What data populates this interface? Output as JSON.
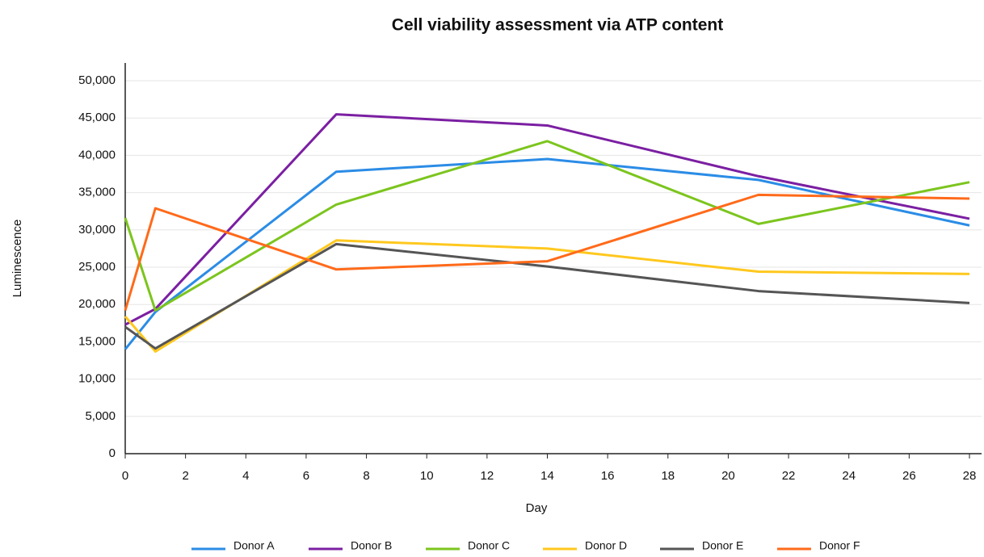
{
  "chart_data": {
    "type": "line",
    "title": "Cell viability assessment via ATP content",
    "x_label": "Day",
    "y_label": "Luminescence",
    "x": [
      0,
      1,
      7,
      14,
      21,
      28
    ],
    "series": [
      {
        "name": "Donor A",
        "color": "#2b8ce6",
        "values": [
          14000,
          19000,
          37800,
          39500,
          36700,
          30600
        ]
      },
      {
        "name": "Donor B",
        "color": "#7b1fa2",
        "values": [
          17300,
          19400,
          45500,
          44000,
          37200,
          31500
        ]
      },
      {
        "name": "Donor C",
        "color": "#7cc51e",
        "values": [
          31600,
          19200,
          33400,
          41900,
          30800,
          36400
        ]
      },
      {
        "name": "Donor D",
        "color": "#ffc81e",
        "values": [
          18400,
          13700,
          28600,
          27500,
          24400,
          24100
        ]
      },
      {
        "name": "Donor E",
        "color": "#555555",
        "values": [
          17000,
          14100,
          28100,
          25100,
          21800,
          20200
        ]
      },
      {
        "name": "Donor F",
        "color": "#ff6a1a",
        "values": [
          19200,
          32900,
          24700,
          25800,
          34700,
          34200
        ]
      }
    ],
    "xlim": [
      0,
      28
    ],
    "xticks": [
      0,
      2,
      4,
      6,
      8,
      10,
      12,
      14,
      16,
      18,
      20,
      22,
      24,
      26,
      28
    ],
    "ylim": [
      0,
      50000
    ],
    "yticks": [
      0,
      {
        "value": 5000,
        "label": "5,000"
      },
      {
        "value": 10000,
        "label": "10,000"
      },
      {
        "value": 15000,
        "label": "15,000"
      },
      {
        "value": 20000,
        "label": "20,000"
      },
      {
        "value": 25000,
        "label": "25,000"
      },
      {
        "value": 30000,
        "label": "30,000"
      },
      {
        "value": 35000,
        "label": "35,000"
      },
      {
        "value": 40000,
        "label": "40,000"
      },
      {
        "value": 45000,
        "label": "45,000"
      },
      {
        "value": 50000,
        "label": "50,000"
      }
    ],
    "grid": true,
    "legend": "bottom"
  }
}
